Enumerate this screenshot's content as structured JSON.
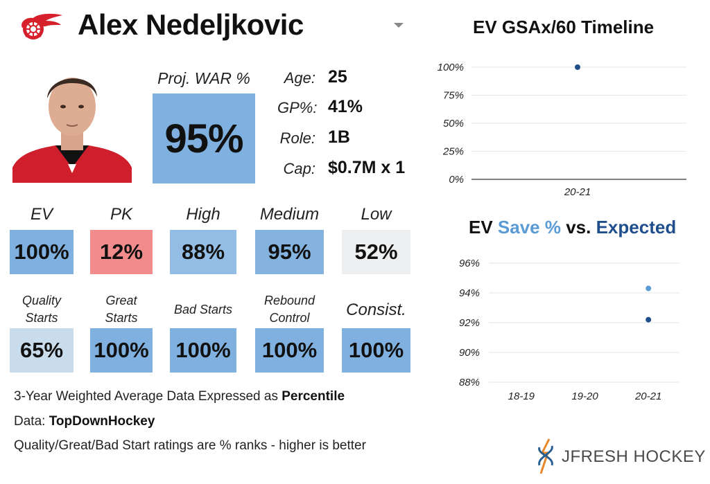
{
  "player": {
    "name": "Alex Nedeljkovic",
    "team_logo": "red-wings-winged-wheel"
  },
  "war": {
    "label": "Proj. WAR %",
    "value": "95%"
  },
  "info": [
    {
      "label": "Age:",
      "value": "25"
    },
    {
      "label": "GP%:",
      "value": "41%"
    },
    {
      "label": "Role:",
      "value": "1B"
    },
    {
      "label": "Cap:",
      "value": "$0.7M x 1"
    }
  ],
  "stats_row1": [
    {
      "label": "EV",
      "value": "100%",
      "color": "#7fb0df"
    },
    {
      "label": "PK",
      "value": "12%",
      "color": "#f28c8c"
    },
    {
      "label": "High",
      "value": "88%",
      "color": "#93bde4"
    },
    {
      "label": "Medium",
      "value": "95%",
      "color": "#85b3df"
    },
    {
      "label": "Low",
      "value": "52%",
      "color": "#eeeff1"
    }
  ],
  "stats_row2": [
    {
      "label_line1": "Quality",
      "label_line2": "Starts",
      "value": "65%",
      "color": "#c9dcec"
    },
    {
      "label_line1": "Great",
      "label_line2": "Starts",
      "value": "100%",
      "color": "#7fb0df"
    },
    {
      "label_line1": "Bad Starts",
      "label_line2": "",
      "value": "100%",
      "color": "#7fb0df"
    },
    {
      "label_line1": "Rebound",
      "label_line2": "Control",
      "value": "100%",
      "color": "#7fb0df"
    },
    {
      "label_line1": "Consist.",
      "label_line2": "",
      "value": "100%",
      "color": "#7fb0df"
    }
  ],
  "notes": {
    "line1_text": "3-Year Weighted Average Data Expressed as ",
    "line1_bold": "Percentile",
    "line2_text": "Data: ",
    "line2_bold": "TopDownHockey",
    "line3_text": "Quality/Great/Bad Start ratings are % ranks - higher is better"
  },
  "brand": {
    "name": "JFRESH HOCKEY"
  },
  "colors": {
    "light_blue": "#5b9bd5",
    "dark_blue": "#1f4e8c"
  },
  "chart_data": [
    {
      "type": "scatter",
      "title": "EV GSAx/60 Timeline",
      "categories": [
        "20-21"
      ],
      "series": [
        {
          "values": [
            100
          ]
        }
      ],
      "ylim": [
        0,
        100
      ],
      "yticks": [
        "100%",
        "75%",
        "50%",
        "25%",
        "0%"
      ],
      "grid": true
    },
    {
      "type": "scatter",
      "title_parts": [
        "EV ",
        "Save %",
        " vs. ",
        "Expected"
      ],
      "categories": [
        "18-19",
        "19-20",
        "20-21"
      ],
      "series": [
        {
          "name": "Save %",
          "color": "#5b9bd5",
          "values": [
            null,
            null,
            94.3
          ]
        },
        {
          "name": "Expected",
          "color": "#1f4e8c",
          "values": [
            null,
            null,
            92.2
          ]
        }
      ],
      "ylim": [
        88,
        96
      ],
      "yticks": [
        "96%",
        "94%",
        "92%",
        "90%",
        "88%"
      ],
      "grid": true
    }
  ]
}
